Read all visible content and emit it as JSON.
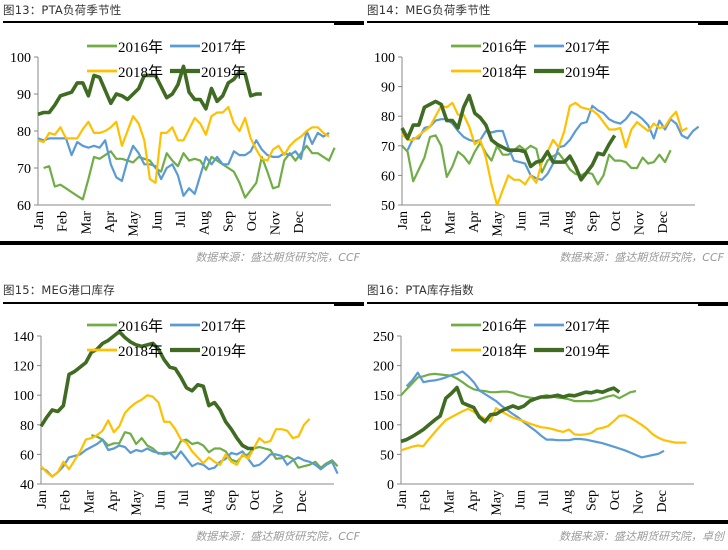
{
  "chart_data": [
    {
      "id": "fig13",
      "type": "line",
      "title": "图13：PTA负荷季节性",
      "xlabel": "",
      "ylabel": "",
      "x_tick_labels": [
        "Jan",
        "Feb",
        "Mar",
        "Apr",
        "May",
        "Jun",
        "Jul",
        "Aug",
        "Sep",
        "Oct",
        "Nov",
        "Dec"
      ],
      "ylim": [
        60,
        100
      ],
      "y_ticks": [
        60,
        70,
        80,
        90,
        100
      ],
      "grid": false,
      "legend": "top-center",
      "source": "数据来源：盛达期货研究院，CCF",
      "series": [
        {
          "name": "2016年",
          "color": "#70ad47",
          "width": 2.2,
          "values": [
            null,
            70,
            70.5,
            65,
            65.5,
            64.5,
            63.5,
            62.5,
            61.5,
            67,
            73,
            72.5,
            73.5,
            74.5,
            72.5,
            72.5,
            72,
            71.5,
            73,
            72.5,
            72,
            70,
            69,
            74,
            72,
            70.5,
            74,
            72,
            72.5,
            72,
            69.5,
            73,
            72,
            71,
            70,
            69,
            66,
            62,
            64,
            66,
            73,
            69,
            64.5,
            65,
            72,
            74,
            72,
            74,
            76,
            74,
            74,
            73,
            72,
            75.5
          ]
        },
        {
          "name": "2017年",
          "color": "#5b9bd5",
          "width": 2.2,
          "values": [
            78,
            77.5,
            78,
            78,
            78,
            78,
            73.5,
            77,
            76,
            75.5,
            76,
            75.5,
            77.5,
            71,
            67.5,
            66.5,
            72,
            76,
            74,
            71,
            71,
            70.5,
            67,
            70,
            71,
            68,
            62.5,
            64.5,
            63,
            68,
            73,
            71,
            73,
            71,
            71,
            74.5,
            73.5,
            73.5,
            74.5,
            77.5,
            75,
            73.5,
            73,
            73,
            74,
            73.5,
            74.5,
            72.5,
            80,
            76.5,
            79.5,
            78.5,
            79.5
          ]
        },
        {
          "name": "2018年",
          "color": "#ffc000",
          "width": 2.2,
          "values": [
            77.5,
            77,
            79.5,
            79,
            81,
            78,
            78,
            78,
            80.5,
            82.5,
            79.5,
            79.5,
            80,
            81,
            82.5,
            76,
            80,
            84,
            82,
            77.5,
            67,
            66,
            79.5,
            79.5,
            81,
            77.5,
            77.5,
            80.5,
            83.5,
            82,
            79,
            84,
            85,
            85,
            86.5,
            82,
            80,
            83.5,
            78,
            75,
            72.5,
            72,
            75,
            76,
            73.5,
            76,
            77.5,
            78.5,
            80,
            81,
            81,
            79.5,
            78.5
          ]
        },
        {
          "name": "2019年",
          "color": "#3f6b22",
          "width": 3.6,
          "values": [
            84.5,
            85,
            85,
            87,
            89.5,
            90,
            90.5,
            93,
            93,
            89.5,
            95,
            94.5,
            91,
            87.5,
            90,
            89.5,
            88.5,
            90,
            91.5,
            95,
            95,
            95,
            92,
            89,
            90,
            92.5,
            97.5,
            90.5,
            88.5,
            88.5,
            86,
            91.5,
            88,
            89.5,
            93,
            94,
            96,
            95.5,
            89.5,
            90,
            90
          ]
        }
      ]
    },
    {
      "id": "fig14",
      "type": "line",
      "title": "图14：MEG负荷季节性",
      "xlabel": "",
      "ylabel": "",
      "x_tick_labels": [
        "Jan",
        "Feb",
        "Mar",
        "Apr",
        "May",
        "Jun",
        "Jul",
        "Aug",
        "Sep",
        "Oct",
        "Nov",
        "Dec"
      ],
      "ylim": [
        50,
        100
      ],
      "y_ticks": [
        50,
        60,
        70,
        80,
        90,
        100
      ],
      "grid": false,
      "legend": "top-center",
      "source": "数据来源：盛达期货研究院，CCF",
      "series": [
        {
          "name": "2016年",
          "color": "#70ad47",
          "width": 2.2,
          "values": [
            70,
            68,
            58,
            62,
            66,
            73,
            73.5,
            70,
            59.5,
            63,
            68,
            66.5,
            64,
            68,
            71,
            67.5,
            65,
            70,
            67,
            67,
            68.5,
            70,
            68.5,
            70,
            69,
            61,
            65,
            66.5,
            67.5,
            65,
            62,
            60.5,
            60,
            61,
            60.5,
            57,
            60,
            67,
            65,
            65,
            64.5,
            62.5,
            62.5,
            66,
            64,
            64.5,
            67,
            64.5,
            68.5
          ]
        },
        {
          "name": "2017年",
          "color": "#5b9bd5",
          "width": 2.2,
          "values": [
            null,
            68.5,
            72.5,
            72.5,
            76,
            76.5,
            78.5,
            79,
            79,
            77.5,
            75,
            73,
            72,
            71.5,
            72,
            75,
            74.5,
            75,
            75,
            69.5,
            65,
            64.5,
            64,
            60,
            59,
            58.5,
            60.5,
            64,
            69.5,
            70,
            72,
            75,
            77.5,
            78,
            83.5,
            82,
            81,
            79,
            78,
            77.5,
            79,
            81.5,
            80.5,
            79,
            77,
            72.5,
            78.5,
            75.5,
            79,
            77.5,
            73.5,
            72.5,
            75,
            76.5
          ]
        },
        {
          "name": "2018年",
          "color": "#ffc000",
          "width": 2.2,
          "values": [
            74,
            72,
            72,
            73.5,
            75,
            76.5,
            80,
            83.5,
            83,
            84.5,
            80.5,
            80.5,
            76.5,
            70.5,
            72,
            66,
            57,
            50,
            55,
            60,
            58.5,
            58.5,
            57,
            60,
            57.5,
            64.5,
            68,
            72,
            69.5,
            75,
            83.5,
            84.5,
            83,
            82.5,
            82,
            80.5,
            78,
            75.5,
            75.5,
            76,
            69.5,
            75.5,
            78,
            76.5,
            75,
            77.5,
            76,
            76.5,
            79.5,
            81.5,
            75,
            76
          ]
        },
        {
          "name": "2019年",
          "color": "#3f6b22",
          "width": 3.6,
          "values": [
            76,
            72.5,
            77,
            77,
            83,
            84,
            85,
            84,
            78.5,
            78.5,
            76,
            83,
            87,
            81,
            79.5,
            77,
            72,
            70.5,
            69.5,
            68.5,
            68.5,
            68.5,
            68,
            63,
            64.5,
            65,
            68,
            64.5,
            64.5,
            64.5,
            66.5,
            63,
            58.5,
            61,
            63.5,
            67.5,
            67,
            70.5,
            73.5
          ]
        }
      ]
    },
    {
      "id": "fig15",
      "type": "line",
      "title": "图15：MEG港口库存",
      "xlabel": "",
      "ylabel": "",
      "x_tick_labels": [
        "Jan",
        "Feb",
        "Mar",
        "Apr",
        "May",
        "Jun",
        "Jul",
        "Aug",
        "Sep",
        "Oct",
        "Nov",
        "Dec"
      ],
      "ylim": [
        40,
        140
      ],
      "y_ticks": [
        40,
        60,
        80,
        100,
        120,
        140
      ],
      "grid": false,
      "legend": "top-center",
      "source": "数据来源：盛达期货研究院，CCF",
      "series": [
        {
          "name": "2016年",
          "color": "#70ad47",
          "width": 2.2,
          "values": [
            null,
            null,
            null,
            null,
            null,
            null,
            null,
            null,
            null,
            73,
            72,
            70,
            66,
            67.5,
            67.5,
            75,
            74,
            67,
            71,
            66,
            64,
            60.5,
            61,
            61,
            62,
            69,
            70,
            67,
            68,
            66,
            61.5,
            64,
            64,
            62,
            56.5,
            55,
            59,
            60,
            64,
            65,
            64,
            63,
            57,
            57.5,
            59,
            57,
            51,
            52,
            53,
            55,
            51,
            54,
            56,
            52
          ]
        },
        {
          "name": "2017年",
          "color": "#5b9bd5",
          "width": 2.2,
          "values": [
            51,
            49,
            45,
            48,
            52,
            58,
            59,
            60,
            63,
            65,
            67,
            70,
            63,
            64,
            66,
            65,
            61,
            63,
            62,
            64,
            62,
            61,
            60,
            61,
            57,
            62,
            57,
            52,
            54,
            53,
            50,
            51,
            55,
            57,
            61,
            60,
            62,
            57,
            52,
            53,
            56,
            60,
            60,
            59,
            53,
            56,
            58,
            56,
            55,
            53,
            50,
            53,
            55,
            47
          ]
        },
        {
          "name": "2018年",
          "color": "#ffc000",
          "width": 2.2,
          "values": [
            52,
            48,
            45,
            48,
            55,
            50,
            56,
            62,
            70,
            71,
            73,
            76,
            83,
            75,
            79,
            88,
            92,
            95,
            97,
            100,
            99,
            95,
            82,
            82,
            77,
            70,
            68,
            62,
            58,
            54,
            58,
            55,
            53,
            60,
            55,
            53,
            60,
            57,
            64,
            71,
            68,
            69,
            77,
            77,
            76,
            71,
            72,
            80,
            84
          ]
        },
        {
          "name": "2019年",
          "color": "#3f6b22",
          "width": 3.6,
          "values": [
            79,
            85,
            90,
            89,
            93,
            114,
            116,
            119,
            122,
            129,
            131,
            135,
            137,
            140,
            143,
            139,
            136,
            134,
            133,
            134,
            135,
            131,
            124,
            119,
            118,
            112,
            105,
            103,
            107,
            106,
            93,
            95,
            90,
            82,
            77,
            71,
            66,
            64,
            64
          ]
        }
      ]
    },
    {
      "id": "fig16",
      "type": "line",
      "title": "图16：PTA库存指数",
      "xlabel": "",
      "ylabel": "",
      "x_tick_labels": [
        "Jan",
        "Feb",
        "Mar",
        "Apr",
        "May",
        "Jun",
        "Jul",
        "Aug",
        "Sep",
        "Oct",
        "Nov",
        "Dec"
      ],
      "ylim": [
        0,
        250
      ],
      "y_ticks": [
        0,
        50,
        100,
        150,
        200,
        250
      ],
      "grid": false,
      "legend": "top-center",
      "source": "数据来源：盛达期货研究院，卓创",
      "series": [
        {
          "name": "2016年",
          "color": "#70ad47",
          "width": 2.2,
          "values": [
            150,
            160,
            170,
            180,
            182,
            185,
            186,
            185,
            184,
            183,
            178,
            172,
            165,
            160,
            158,
            157,
            155,
            155,
            156,
            156,
            154,
            150,
            148,
            146,
            145,
            148,
            150,
            148,
            146,
            145,
            143,
            140,
            140,
            140,
            140,
            142,
            145,
            148,
            150,
            145,
            150,
            155,
            157
          ]
        },
        {
          "name": "2017年",
          "color": "#5b9bd5",
          "width": 2.2,
          "values": [
            null,
            165,
            175,
            188,
            172,
            174,
            175,
            177,
            180,
            184,
            186,
            190,
            182,
            172,
            158,
            152,
            146,
            140,
            132,
            125,
            118,
            112,
            104,
            97,
            90,
            82,
            75,
            75,
            74,
            74,
            74,
            76,
            76,
            75,
            73,
            71,
            69,
            66,
            63,
            60,
            57,
            53,
            49,
            45,
            47,
            49,
            51,
            56
          ]
        },
        {
          "name": "2018年",
          "color": "#ffc000",
          "width": 2.2,
          "values": [
            57,
            60,
            63,
            65,
            64,
            76,
            87,
            98,
            108,
            113,
            118,
            123,
            127,
            122,
            116,
            110,
            106,
            128,
            122,
            117,
            112,
            109,
            106,
            102,
            99,
            96,
            95,
            93,
            90,
            88,
            92,
            84,
            83,
            84,
            86,
            93,
            95,
            98,
            106,
            115,
            116,
            112,
            106,
            100,
            93,
            84,
            78,
            74,
            72,
            70,
            70,
            70
          ]
        },
        {
          "name": "2019年",
          "color": "#3f6b22",
          "width": 3.6,
          "values": [
            72,
            75,
            80,
            86,
            92,
            100,
            108,
            115,
            145,
            153,
            163,
            137,
            133,
            129,
            113,
            105,
            117,
            118,
            124,
            128,
            132,
            128,
            132,
            140,
            144,
            147,
            147,
            148,
            150,
            147,
            150,
            149,
            152,
            155,
            154,
            157,
            155,
            159,
            162,
            155
          ]
        }
      ]
    }
  ],
  "legend_labels": [
    "2016年",
    "2017年",
    "2018年",
    "2019年"
  ]
}
